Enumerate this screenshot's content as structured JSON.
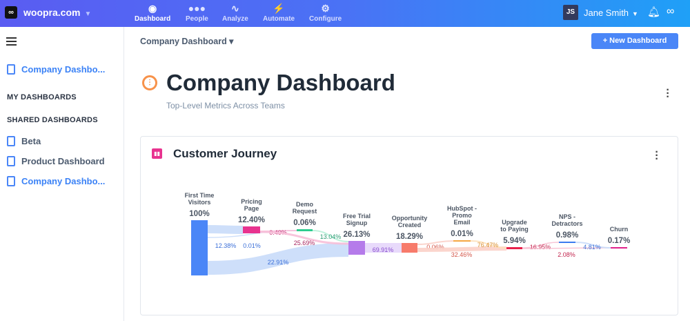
{
  "topbar": {
    "logo": "∞",
    "site": "woopra.com",
    "nav": [
      {
        "label": "Dashboard",
        "icon": "dashboard-gauge-icon",
        "active": true
      },
      {
        "label": "People",
        "icon": "people-icon"
      },
      {
        "label": "Analyze",
        "icon": "analyze-chart-icon"
      },
      {
        "label": "Automate",
        "icon": "automate-bolt-icon"
      },
      {
        "label": "Configure",
        "icon": "gear-icon"
      }
    ],
    "user_initials": "JS",
    "user_name": "Jane Smith"
  },
  "sidebar": {
    "pinned": "Company Dashbo...",
    "my_dashboards": "MY DASHBOARDS",
    "shared_dashboards": "SHARED DASHBOARDS",
    "shared": [
      "Beta",
      "Product Dashboard",
      "Company Dashbo..."
    ]
  },
  "header": {
    "breadcrumb": "Company Dashboard ▾",
    "new_button": "+  New Dashboard",
    "title": "Company Dashboard",
    "subtitle": "Top-Level Metrics Across Teams"
  },
  "card": {
    "title": "Customer Journey"
  },
  "chart_data": {
    "type": "sankey",
    "nodes": [
      {
        "label": [
          "First Time",
          "Visitors"
        ],
        "value": "100%",
        "color": "#4a86f7"
      },
      {
        "label": [
          "Pricing",
          "Page"
        ],
        "value": "12.40%",
        "color": "#e8338f"
      },
      {
        "label": [
          "Demo",
          "Request"
        ],
        "value": "0.06%",
        "color": "#2ecc8f"
      },
      {
        "label": [
          "Free Trial",
          "Signup"
        ],
        "value": "26.13%",
        "color": "#b57bea"
      },
      {
        "label": [
          "Opportunity",
          "Created"
        ],
        "value": "18.29%",
        "color": "#f77b6b"
      },
      {
        "label": [
          "HubSpot -",
          "Promo",
          "Email"
        ],
        "value": "0.01%",
        "color": "#f5a742"
      },
      {
        "label": [
          "Upgrade",
          "to Paying"
        ],
        "value": "5.94%",
        "color": "#e8214b"
      },
      {
        "label": [
          "NPS -",
          "Detractors"
        ],
        "value": "0.98%",
        "color": "#3b7bef"
      },
      {
        "label": [
          "Churn"
        ],
        "value": "0.17%",
        "color": "#e0208a"
      }
    ],
    "links": [
      {
        "from": 0,
        "to": 1,
        "value": "12.38%"
      },
      {
        "from": 0,
        "to": 2,
        "value": "0.01%"
      },
      {
        "from": 0,
        "to": 3,
        "value": "22.91%"
      },
      {
        "from": 1,
        "to": 2,
        "value": "0.40%"
      },
      {
        "from": 1,
        "to": 3,
        "value": "25.69%"
      },
      {
        "from": 2,
        "to": 3,
        "value": "13.04%"
      },
      {
        "from": 3,
        "to": 4,
        "value": "69.91%"
      },
      {
        "from": 4,
        "to": 5,
        "value": "0.06%"
      },
      {
        "from": 4,
        "to": 6,
        "value": "32.46%"
      },
      {
        "from": 5,
        "to": 6,
        "value": "76.47%"
      },
      {
        "from": 6,
        "to": 7,
        "value": "16.95%"
      },
      {
        "from": 6,
        "to": 8,
        "value": "2.08%"
      },
      {
        "from": 7,
        "to": 8,
        "value": "4.81%"
      }
    ]
  }
}
